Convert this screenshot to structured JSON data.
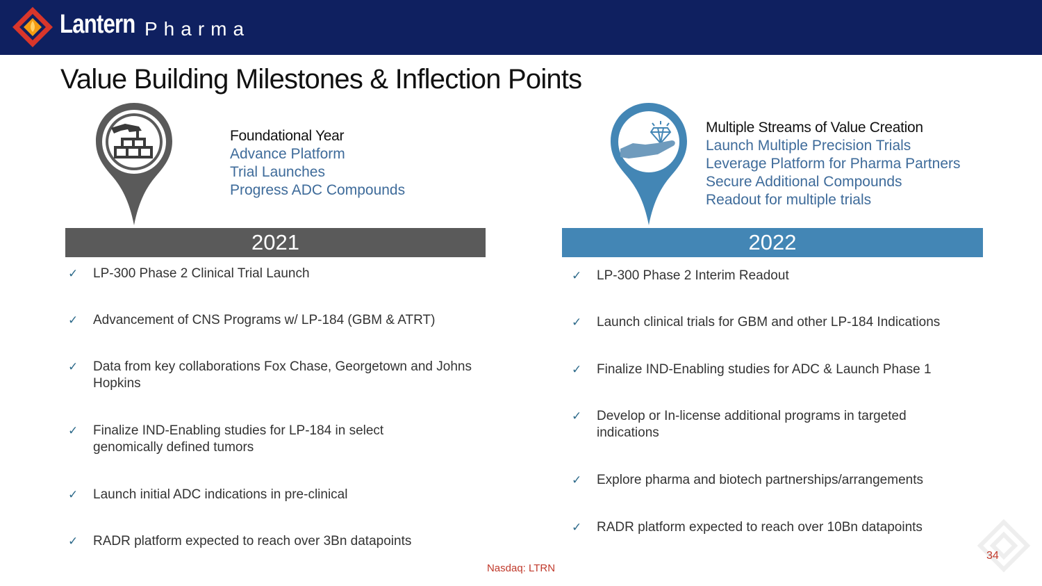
{
  "header": {
    "brand_name": "Lantern",
    "brand_sub": "Pharma",
    "logo_icon": "lantern-diamond-logo",
    "colors": {
      "bar": "#0f2060",
      "logo_red": "#d9362b",
      "logo_orange": "#f39c12"
    }
  },
  "title": "Value Building Milestones & Inflection Points",
  "year2021": {
    "year": "2021",
    "icon": "hand-with-bricks-icon",
    "color": "#5a5a5a",
    "streams_title": "Foundational Year",
    "streams": [
      "Advance Platform",
      "Trial Launches",
      "Progress ADC Compounds"
    ],
    "milestones": [
      "LP-300 Phase 2 Clinical Trial Launch",
      "Advancement of CNS Programs w/ LP-184 (GBM & ATRT)",
      "Data from key collaborations Fox Chase, Georgetown and Johns Hopkins",
      "Finalize IND-Enabling studies for LP-184 in select genomically defined tumors",
      "Launch initial ADC indications in pre-clinical",
      "RADR platform expected to reach over 3Bn datapoints"
    ]
  },
  "year2022": {
    "year": "2022",
    "icon": "hand-with-diamond-icon",
    "color": "#4386b5",
    "streams_title": "Multiple Streams of Value Creation",
    "streams": [
      "Launch Multiple Precision Trials",
      "Leverage Platform for Pharma Partners",
      "Secure Additional Compounds",
      "Readout for multiple trials"
    ],
    "milestones": [
      "LP-300 Phase 2 Interim Readout",
      "Launch clinical trials for GBM and other LP-184 Indications",
      "Finalize IND-Enabling studies for ADC & Launch Phase 1",
      "Develop or In-license additional programs in targeted indications",
      "Explore pharma and biotech partnerships/arrangements",
      "RADR platform expected to reach over 10Bn datapoints"
    ]
  },
  "check_glyph": "✓",
  "footer": {
    "ticker": "Nasdaq: LTRN",
    "page_number": "34"
  }
}
